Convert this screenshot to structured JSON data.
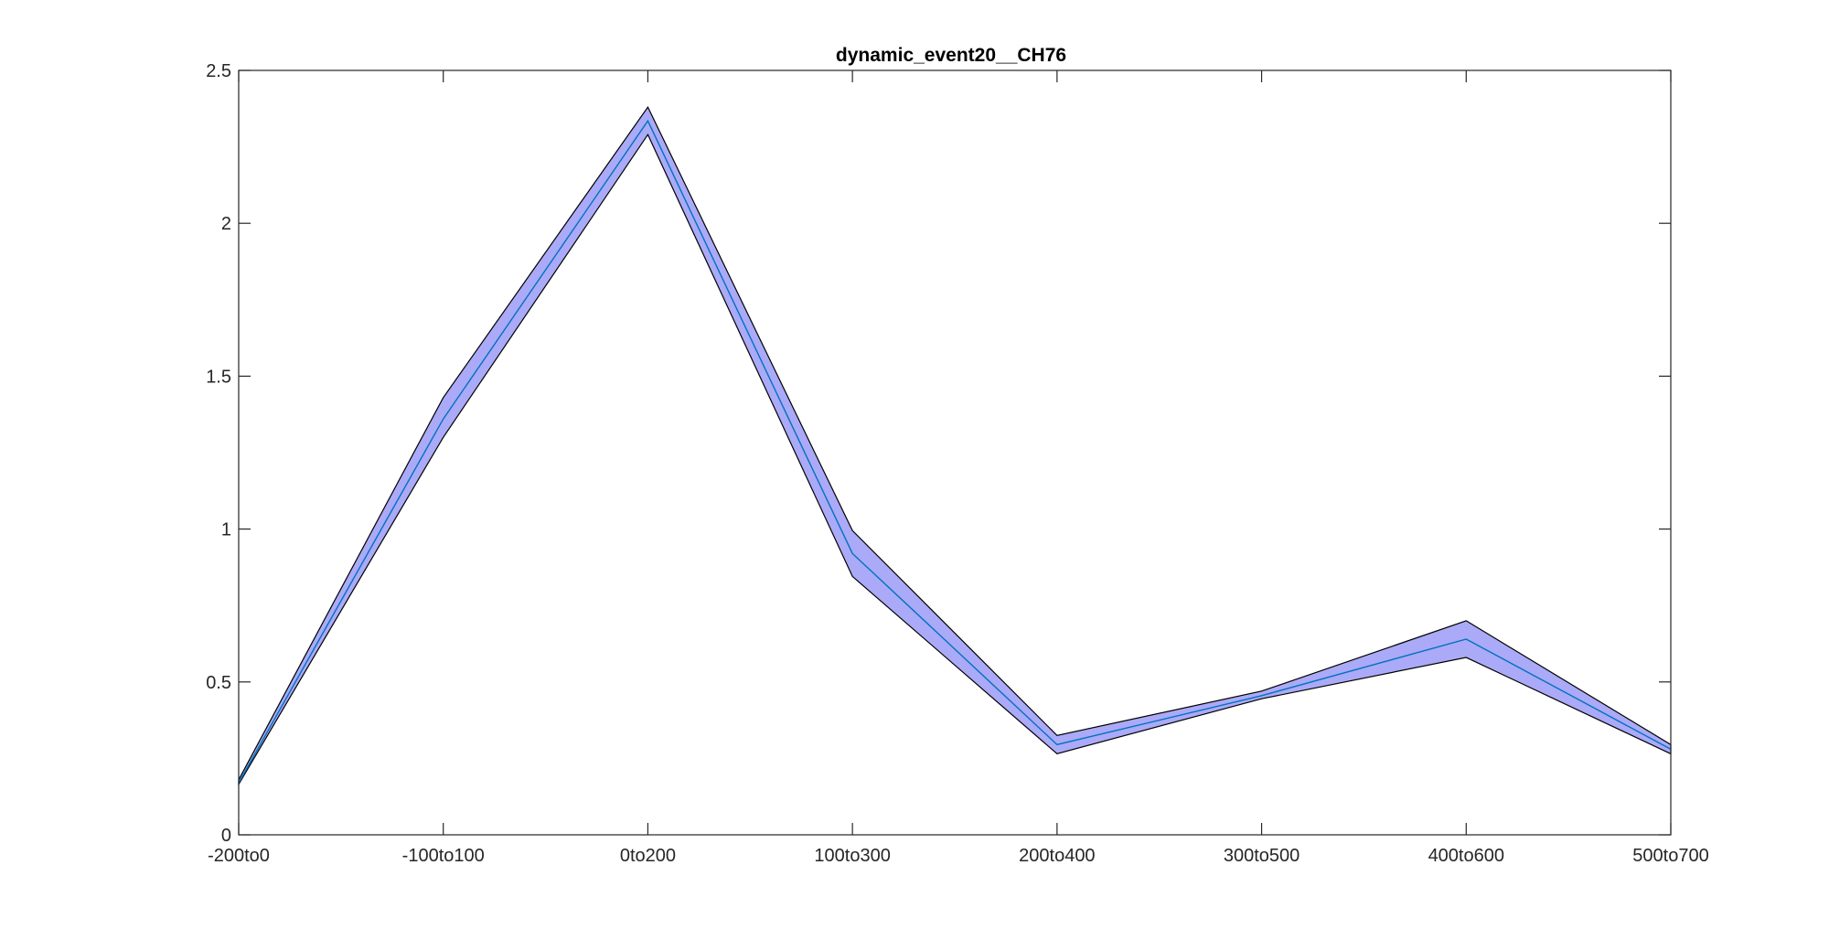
{
  "chart_data": {
    "type": "area",
    "title": "dynamic_event20__CH76",
    "xlabel": "",
    "ylabel": "",
    "categories": [
      "-200to0",
      "-100to100",
      "0to200",
      "100to300",
      "200to400",
      "300to500",
      "400to600",
      "500to700"
    ],
    "ylim": [
      0,
      2.5
    ],
    "yticks": [
      0,
      0.5,
      1,
      1.5,
      2,
      2.5
    ],
    "ytick_labels": [
      "0",
      "0.5",
      "1",
      "1.5",
      "2",
      "2.5"
    ],
    "grid": false,
    "legend": "none",
    "series": [
      {
        "role": "mean",
        "values": [
          0.17,
          1.36,
          2.335,
          0.92,
          0.295,
          0.455,
          0.64,
          0.28
        ],
        "color": "#0072bd"
      },
      {
        "role": "upper",
        "values": [
          0.18,
          1.43,
          2.38,
          0.995,
          0.325,
          0.47,
          0.7,
          0.295
        ],
        "color": "#000000"
      },
      {
        "role": "lower",
        "values": [
          0.165,
          1.3,
          2.29,
          0.845,
          0.265,
          0.445,
          0.58,
          0.265
        ],
        "color": "#000000"
      }
    ],
    "band_fill": "#aaaaf8",
    "axis_color": "#262626"
  }
}
